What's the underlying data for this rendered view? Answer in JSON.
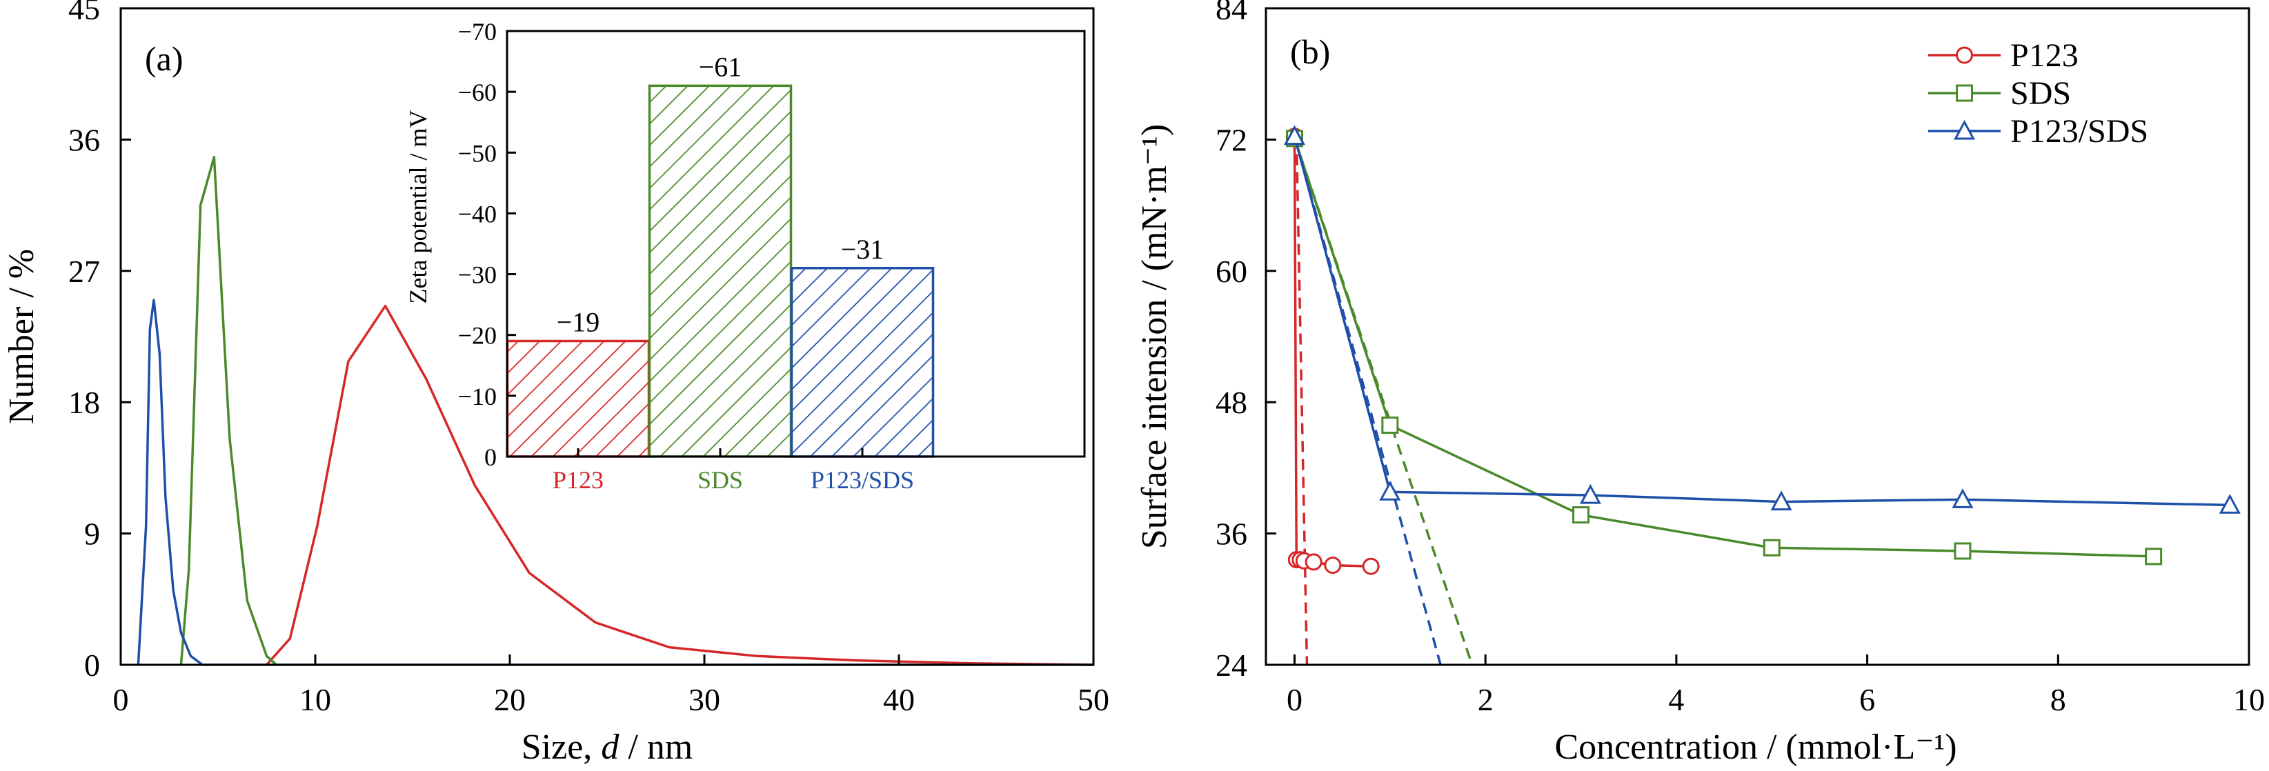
{
  "colors": {
    "red": "#d62728",
    "green": "#4a8a2a",
    "blue": "#1f4fa8"
  },
  "chart_data": [
    {
      "panel": "(a)",
      "type": "line",
      "xlabel_prefix": "Size, ",
      "xlabel_var": "d",
      "xlabel_suffix": " / nm",
      "ylabel": "Number / %",
      "xlim": [
        0,
        50
      ],
      "ylim": [
        0,
        45
      ],
      "xticks": [
        0,
        10,
        20,
        30,
        40,
        50
      ],
      "yticks": [
        0,
        9,
        18,
        27,
        36,
        45
      ],
      "series": [
        {
          "color": "red",
          "points": [
            [
              7.5,
              0
            ],
            [
              8.7,
              1.8
            ],
            [
              10.1,
              9.5
            ],
            [
              11.7,
              20.8
            ],
            [
              13.6,
              24.6
            ],
            [
              15.7,
              19.6
            ],
            [
              18.2,
              12.3
            ],
            [
              21.0,
              6.3
            ],
            [
              24.4,
              2.9
            ],
            [
              28.2,
              1.2
            ],
            [
              32.7,
              0.6
            ],
            [
              37.8,
              0.3
            ],
            [
              43.8,
              0.1
            ],
            [
              50,
              0
            ]
          ]
        },
        {
          "color": "green",
          "points": [
            [
              3.1,
              0
            ],
            [
              3.5,
              6.5
            ],
            [
              4.1,
              31.5
            ],
            [
              4.8,
              34.8
            ],
            [
              5.6,
              15.5
            ],
            [
              6.5,
              4.4
            ],
            [
              7.5,
              0.6
            ],
            [
              8.0,
              0
            ]
          ]
        },
        {
          "color": "blue",
          "points": [
            [
              0.9,
              0
            ],
            [
              1.3,
              9.5
            ],
            [
              1.5,
              23.0
            ],
            [
              1.7,
              25.0
            ],
            [
              2.0,
              21.3
            ],
            [
              2.3,
              11.5
            ],
            [
              2.7,
              5.1
            ],
            [
              3.1,
              2.2
            ],
            [
              3.6,
              0.6
            ],
            [
              4.2,
              0
            ],
            [
              50,
              0
            ]
          ]
        }
      ]
    },
    {
      "panel": "inset",
      "type": "bar",
      "ylabel": "Zeta potential / mV",
      "ylim": [
        0,
        -70
      ],
      "yticks": [
        0,
        -10,
        -20,
        -30,
        -40,
        -50,
        -60,
        -70
      ],
      "categories": [
        "P123",
        "SDS",
        "P123/SDS"
      ],
      "values": [
        -19,
        -61,
        -31
      ],
      "labels": [
        "−19",
        "−61",
        "−31"
      ],
      "colors": [
        "red",
        "green",
        "blue"
      ]
    },
    {
      "panel": "(b)",
      "type": "line",
      "xlabel": "Concentration / (mmol·L⁻¹)",
      "ylabel": "Surface intension / (mN·m⁻¹)",
      "xlim": [
        -0.3,
        10
      ],
      "ylim": [
        24,
        84
      ],
      "xticks": [
        0,
        2,
        4,
        6,
        8,
        10
      ],
      "yticks": [
        24,
        36,
        48,
        60,
        72,
        84
      ],
      "series": [
        {
          "name": "P123",
          "color": "red",
          "marker": "circle",
          "points": [
            [
              0,
              72.3
            ],
            [
              0.02,
              33.6
            ],
            [
              0.06,
              33.6
            ],
            [
              0.1,
              33.5
            ],
            [
              0.2,
              33.4
            ],
            [
              0.4,
              33.1
            ],
            [
              0.8,
              33.0
            ]
          ],
          "fit": [
            [
              0.02,
              72.3
            ],
            [
              0.13,
              24
            ]
          ]
        },
        {
          "name": "SDS",
          "color": "green",
          "marker": "square",
          "points": [
            [
              0,
              72.1
            ],
            [
              1,
              45.9
            ],
            [
              3,
              37.7
            ],
            [
              5,
              34.7
            ],
            [
              7,
              34.4
            ],
            [
              9,
              33.9
            ]
          ],
          "fit": [
            [
              0,
              72.1
            ],
            [
              1.86,
              24
            ]
          ]
        },
        {
          "name": "P123/SDS",
          "color": "blue",
          "marker": "triangle",
          "points": [
            [
              0,
              72.3
            ],
            [
              1.0,
              39.8
            ],
            [
              3.1,
              39.5
            ],
            [
              5.1,
              38.9
            ],
            [
              7.0,
              39.1
            ],
            [
              9.8,
              38.6
            ]
          ],
          "fit": [
            [
              0,
              72.3
            ],
            [
              1.53,
              24
            ]
          ]
        }
      ]
    }
  ]
}
